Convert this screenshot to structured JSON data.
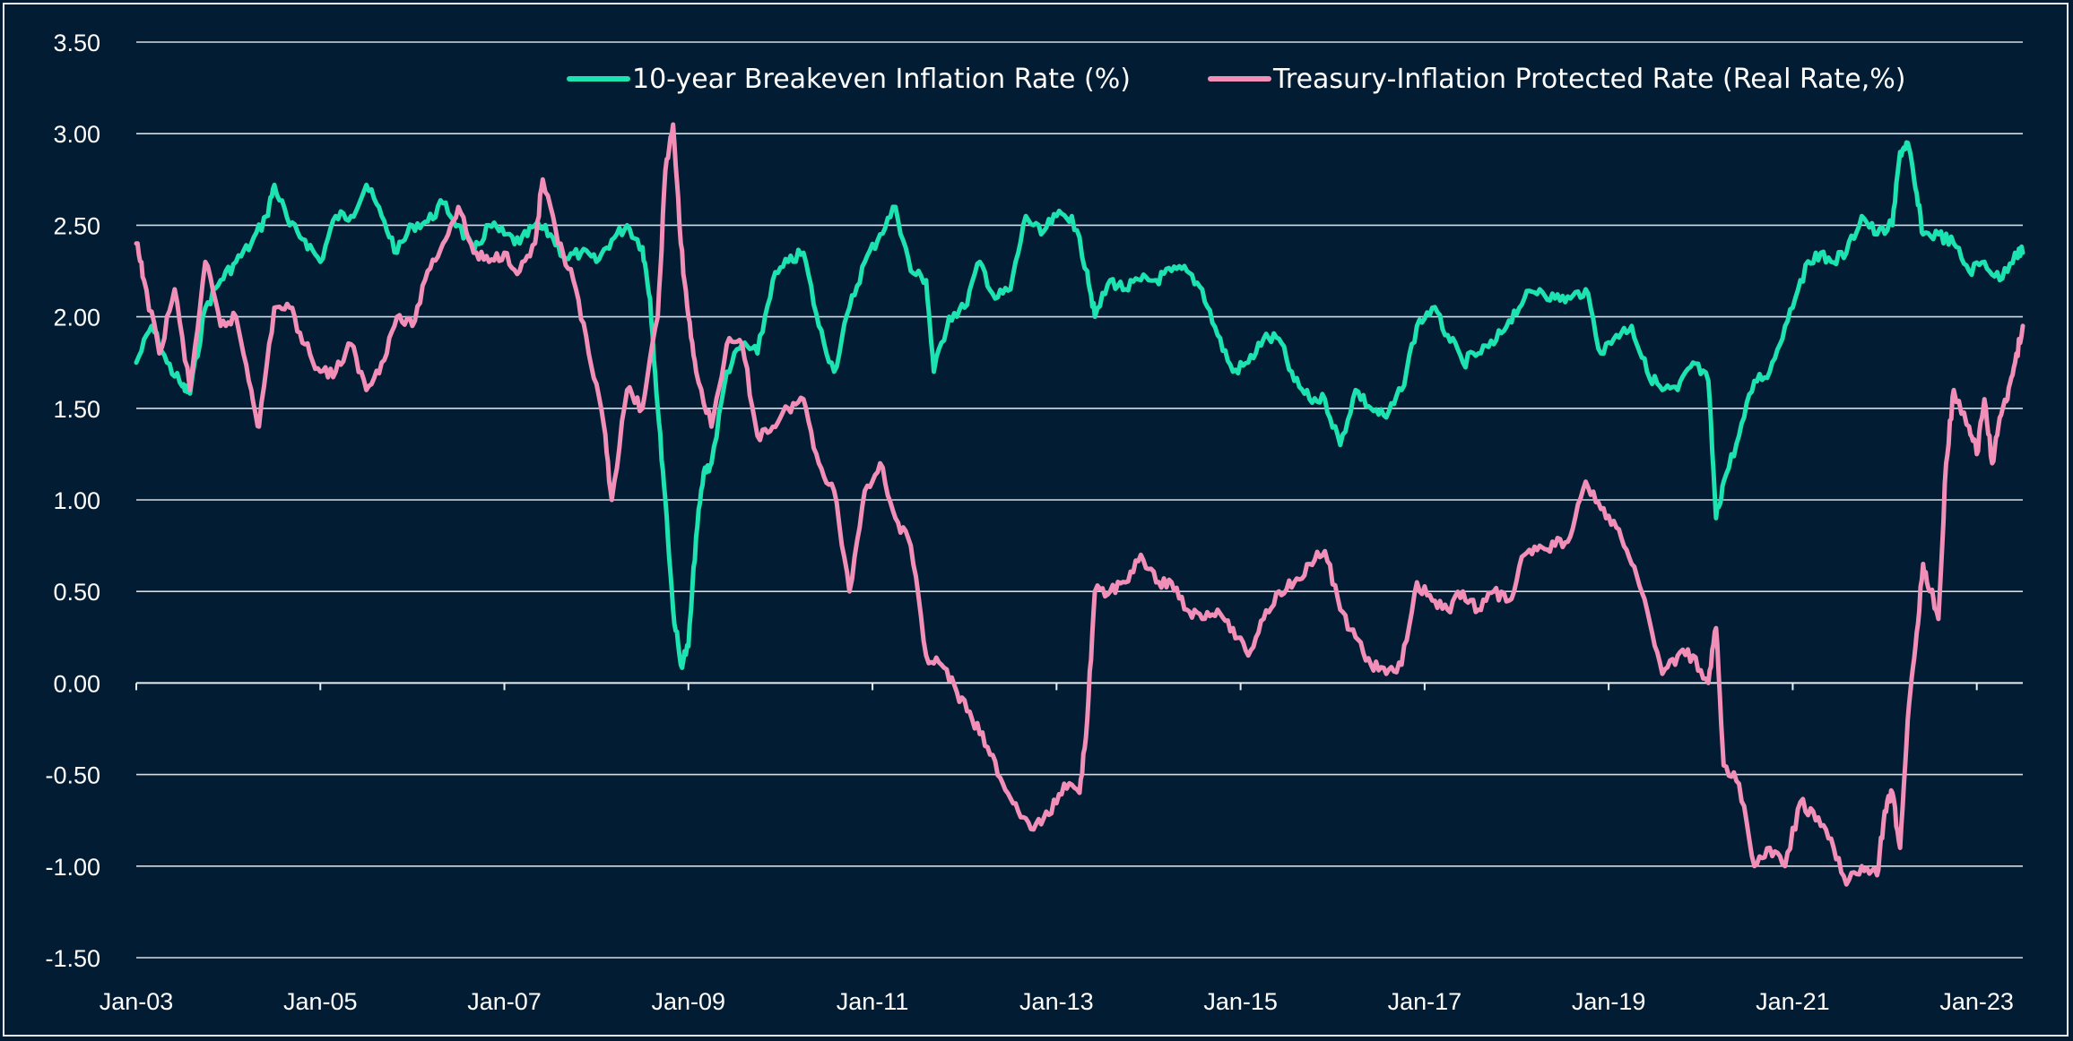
{
  "chart_data": {
    "type": "line",
    "title": "",
    "xlabel": "",
    "ylabel": "",
    "ylim": [
      -1.5,
      3.5
    ],
    "xlim": [
      "2003-01",
      "2023-07"
    ],
    "grid": "horizontal",
    "legend_position": "top",
    "y_ticks": [
      "3.50",
      "3.00",
      "2.50",
      "2.00",
      "1.50",
      "1.00",
      "0.50",
      "0.00",
      "-0.50",
      "-1.00",
      "-1.50"
    ],
    "x_ticks": [
      "Jan-03",
      "Jan-05",
      "Jan-07",
      "Jan-09",
      "Jan-11",
      "Jan-13",
      "Jan-15",
      "Jan-17",
      "Jan-19",
      "Jan-21",
      "Jan-23"
    ],
    "series": [
      {
        "name": "10-year Breakeven Inflation Rate (%)",
        "color": "#1de3b0",
        "points": [
          [
            "2003-01",
            1.75
          ],
          [
            "2003-03",
            1.95
          ],
          [
            "2003-05",
            1.75
          ],
          [
            "2003-07",
            1.62
          ],
          [
            "2003-08",
            1.58
          ],
          [
            "2003-10",
            2.05
          ],
          [
            "2003-12",
            2.2
          ],
          [
            "2004-02",
            2.3
          ],
          [
            "2004-04",
            2.4
          ],
          [
            "2004-06",
            2.55
          ],
          [
            "2004-07",
            2.72
          ],
          [
            "2004-09",
            2.5
          ],
          [
            "2004-11",
            2.42
          ],
          [
            "2005-01",
            2.3
          ],
          [
            "2005-03",
            2.55
          ],
          [
            "2005-05",
            2.55
          ],
          [
            "2005-07",
            2.72
          ],
          [
            "2005-09",
            2.55
          ],
          [
            "2005-11",
            2.35
          ],
          [
            "2006-01",
            2.5
          ],
          [
            "2006-03",
            2.52
          ],
          [
            "2006-05",
            2.62
          ],
          [
            "2006-07",
            2.5
          ],
          [
            "2006-09",
            2.35
          ],
          [
            "2006-11",
            2.5
          ],
          [
            "2007-01",
            2.45
          ],
          [
            "2007-03",
            2.4
          ],
          [
            "2007-05",
            2.5
          ],
          [
            "2007-07",
            2.45
          ],
          [
            "2007-09",
            2.32
          ],
          [
            "2007-11",
            2.35
          ],
          [
            "2008-01",
            2.3
          ],
          [
            "2008-03",
            2.42
          ],
          [
            "2008-05",
            2.5
          ],
          [
            "2008-07",
            2.38
          ],
          [
            "2008-08",
            2.1
          ],
          [
            "2008-09",
            1.5
          ],
          [
            "2008-10",
            1.0
          ],
          [
            "2008-11",
            0.4
          ],
          [
            "2008-12",
            0.1
          ],
          [
            "2009-01",
            0.2
          ],
          [
            "2009-02",
            0.8
          ],
          [
            "2009-03",
            1.15
          ],
          [
            "2009-04",
            1.2
          ],
          [
            "2009-06",
            1.7
          ],
          [
            "2009-08",
            1.85
          ],
          [
            "2009-10",
            1.8
          ],
          [
            "2009-12",
            2.2
          ],
          [
            "2010-02",
            2.3
          ],
          [
            "2010-04",
            2.35
          ],
          [
            "2010-06",
            1.95
          ],
          [
            "2010-08",
            1.7
          ],
          [
            "2010-10",
            2.05
          ],
          [
            "2010-12",
            2.3
          ],
          [
            "2011-02",
            2.45
          ],
          [
            "2011-04",
            2.6
          ],
          [
            "2011-06",
            2.25
          ],
          [
            "2011-08",
            2.2
          ],
          [
            "2011-09",
            1.7
          ],
          [
            "2011-11",
            2.0
          ],
          [
            "2012-01",
            2.05
          ],
          [
            "2012-03",
            2.3
          ],
          [
            "2012-05",
            2.1
          ],
          [
            "2012-07",
            2.15
          ],
          [
            "2012-09",
            2.55
          ],
          [
            "2012-11",
            2.45
          ],
          [
            "2013-01",
            2.55
          ],
          [
            "2013-03",
            2.55
          ],
          [
            "2013-05",
            2.25
          ],
          [
            "2013-06",
            2.0
          ],
          [
            "2013-08",
            2.2
          ],
          [
            "2013-10",
            2.15
          ],
          [
            "2013-12",
            2.2
          ],
          [
            "2014-02",
            2.2
          ],
          [
            "2014-04",
            2.25
          ],
          [
            "2014-06",
            2.25
          ],
          [
            "2014-08",
            2.15
          ],
          [
            "2014-10",
            1.9
          ],
          [
            "2014-12",
            1.7
          ],
          [
            "2015-02",
            1.75
          ],
          [
            "2015-04",
            1.88
          ],
          [
            "2015-06",
            1.88
          ],
          [
            "2015-08",
            1.65
          ],
          [
            "2015-10",
            1.55
          ],
          [
            "2015-12",
            1.55
          ],
          [
            "2016-02",
            1.3
          ],
          [
            "2016-04",
            1.6
          ],
          [
            "2016-06",
            1.5
          ],
          [
            "2016-08",
            1.45
          ],
          [
            "2016-10",
            1.6
          ],
          [
            "2016-12",
            1.95
          ],
          [
            "2017-02",
            2.05
          ],
          [
            "2017-04",
            1.9
          ],
          [
            "2017-06",
            1.75
          ],
          [
            "2017-08",
            1.8
          ],
          [
            "2017-10",
            1.85
          ],
          [
            "2017-12",
            1.98
          ],
          [
            "2018-02",
            2.1
          ],
          [
            "2018-04",
            2.15
          ],
          [
            "2018-06",
            2.1
          ],
          [
            "2018-08",
            2.1
          ],
          [
            "2018-10",
            2.15
          ],
          [
            "2018-12",
            1.8
          ],
          [
            "2019-02",
            1.9
          ],
          [
            "2019-04",
            1.95
          ],
          [
            "2019-06",
            1.7
          ],
          [
            "2019-08",
            1.6
          ],
          [
            "2019-10",
            1.6
          ],
          [
            "2019-12",
            1.75
          ],
          [
            "2020-02",
            1.65
          ],
          [
            "2020-03",
            0.9
          ],
          [
            "2020-04",
            1.1
          ],
          [
            "2020-06",
            1.35
          ],
          [
            "2020-08",
            1.65
          ],
          [
            "2020-10",
            1.7
          ],
          [
            "2020-12",
            1.95
          ],
          [
            "2021-02",
            2.2
          ],
          [
            "2021-04",
            2.35
          ],
          [
            "2021-06",
            2.3
          ],
          [
            "2021-08",
            2.35
          ],
          [
            "2021-10",
            2.55
          ],
          [
            "2021-12",
            2.45
          ],
          [
            "2022-02",
            2.5
          ],
          [
            "2022-03",
            2.9
          ],
          [
            "2022-04",
            2.95
          ],
          [
            "2022-05",
            2.7
          ],
          [
            "2022-06",
            2.45
          ],
          [
            "2022-08",
            2.45
          ],
          [
            "2022-10",
            2.4
          ],
          [
            "2022-12",
            2.25
          ],
          [
            "2023-02",
            2.3
          ],
          [
            "2023-04",
            2.2
          ],
          [
            "2023-06",
            2.35
          ],
          [
            "2023-07",
            2.35
          ]
        ]
      },
      {
        "name": "Treasury-Inflation Protected Rate (Real Rate,%)",
        "color": "#f28fb8",
        "points": [
          [
            "2003-01",
            2.4
          ],
          [
            "2003-02",
            2.2
          ],
          [
            "2003-04",
            1.8
          ],
          [
            "2003-06",
            2.15
          ],
          [
            "2003-08",
            1.6
          ],
          [
            "2003-10",
            2.3
          ],
          [
            "2003-12",
            1.95
          ],
          [
            "2004-02",
            2.0
          ],
          [
            "2004-04",
            1.6
          ],
          [
            "2004-05",
            1.4
          ],
          [
            "2004-07",
            2.05
          ],
          [
            "2004-09",
            2.05
          ],
          [
            "2004-11",
            1.85
          ],
          [
            "2005-01",
            1.7
          ],
          [
            "2005-03",
            1.7
          ],
          [
            "2005-05",
            1.85
          ],
          [
            "2005-07",
            1.6
          ],
          [
            "2005-09",
            1.75
          ],
          [
            "2005-11",
            2.0
          ],
          [
            "2006-01",
            1.95
          ],
          [
            "2006-03",
            2.25
          ],
          [
            "2006-05",
            2.4
          ],
          [
            "2006-07",
            2.6
          ],
          [
            "2006-09",
            2.35
          ],
          [
            "2006-11",
            2.3
          ],
          [
            "2007-01",
            2.35
          ],
          [
            "2007-03",
            2.25
          ],
          [
            "2007-05",
            2.4
          ],
          [
            "2007-06",
            2.75
          ],
          [
            "2007-08",
            2.4
          ],
          [
            "2007-10",
            2.2
          ],
          [
            "2007-12",
            1.8
          ],
          [
            "2008-02",
            1.4
          ],
          [
            "2008-03",
            1.0
          ],
          [
            "2008-05",
            1.6
          ],
          [
            "2008-07",
            1.5
          ],
          [
            "2008-09",
            2.0
          ],
          [
            "2008-10",
            2.8
          ],
          [
            "2008-11",
            3.05
          ],
          [
            "2008-12",
            2.4
          ],
          [
            "2009-01",
            2.0
          ],
          [
            "2009-02",
            1.7
          ],
          [
            "2009-04",
            1.4
          ],
          [
            "2009-06",
            1.85
          ],
          [
            "2009-08",
            1.85
          ],
          [
            "2009-10",
            1.35
          ],
          [
            "2009-12",
            1.4
          ],
          [
            "2010-02",
            1.5
          ],
          [
            "2010-04",
            1.55
          ],
          [
            "2010-06",
            1.2
          ],
          [
            "2010-08",
            1.05
          ],
          [
            "2010-10",
            0.5
          ],
          [
            "2010-12",
            1.05
          ],
          [
            "2011-02",
            1.2
          ],
          [
            "2011-04",
            0.9
          ],
          [
            "2011-06",
            0.75
          ],
          [
            "2011-08",
            0.15
          ],
          [
            "2011-10",
            0.1
          ],
          [
            "2011-12",
            -0.05
          ],
          [
            "2012-02",
            -0.2
          ],
          [
            "2012-04",
            -0.35
          ],
          [
            "2012-06",
            -0.55
          ],
          [
            "2012-08",
            -0.7
          ],
          [
            "2012-10",
            -0.8
          ],
          [
            "2012-12",
            -0.72
          ],
          [
            "2013-02",
            -0.55
          ],
          [
            "2013-04",
            -0.6
          ],
          [
            "2013-05",
            -0.2
          ],
          [
            "2013-06",
            0.5
          ],
          [
            "2013-08",
            0.5
          ],
          [
            "2013-10",
            0.55
          ],
          [
            "2013-12",
            0.7
          ],
          [
            "2014-02",
            0.55
          ],
          [
            "2014-04",
            0.55
          ],
          [
            "2014-06",
            0.4
          ],
          [
            "2014-08",
            0.35
          ],
          [
            "2014-10",
            0.4
          ],
          [
            "2014-12",
            0.3
          ],
          [
            "2015-02",
            0.15
          ],
          [
            "2015-04",
            0.35
          ],
          [
            "2015-06",
            0.5
          ],
          [
            "2015-08",
            0.55
          ],
          [
            "2015-10",
            0.65
          ],
          [
            "2015-12",
            0.72
          ],
          [
            "2016-02",
            0.4
          ],
          [
            "2016-04",
            0.25
          ],
          [
            "2016-06",
            0.1
          ],
          [
            "2016-08",
            0.05
          ],
          [
            "2016-10",
            0.1
          ],
          [
            "2016-12",
            0.55
          ],
          [
            "2017-02",
            0.45
          ],
          [
            "2017-04",
            0.4
          ],
          [
            "2017-06",
            0.5
          ],
          [
            "2017-08",
            0.4
          ],
          [
            "2017-10",
            0.5
          ],
          [
            "2017-12",
            0.45
          ],
          [
            "2018-02",
            0.7
          ],
          [
            "2018-04",
            0.75
          ],
          [
            "2018-06",
            0.75
          ],
          [
            "2018-08",
            0.8
          ],
          [
            "2018-10",
            1.1
          ],
          [
            "2018-12",
            0.95
          ],
          [
            "2019-02",
            0.85
          ],
          [
            "2019-04",
            0.65
          ],
          [
            "2019-06",
            0.4
          ],
          [
            "2019-08",
            0.05
          ],
          [
            "2019-10",
            0.15
          ],
          [
            "2019-12",
            0.15
          ],
          [
            "2020-02",
            0.0
          ],
          [
            "2020-03",
            0.3
          ],
          [
            "2020-04",
            -0.45
          ],
          [
            "2020-06",
            -0.55
          ],
          [
            "2020-08",
            -1.0
          ],
          [
            "2020-10",
            -0.9
          ],
          [
            "2020-12",
            -1.0
          ],
          [
            "2021-02",
            -0.65
          ],
          [
            "2021-04",
            -0.75
          ],
          [
            "2021-06",
            -0.85
          ],
          [
            "2021-08",
            -1.1
          ],
          [
            "2021-10",
            -1.0
          ],
          [
            "2021-12",
            -1.05
          ],
          [
            "2022-01",
            -0.7
          ],
          [
            "2022-02",
            -0.6
          ],
          [
            "2022-03",
            -0.9
          ],
          [
            "2022-04",
            -0.2
          ],
          [
            "2022-05",
            0.2
          ],
          [
            "2022-06",
            0.65
          ],
          [
            "2022-07",
            0.5
          ],
          [
            "2022-08",
            0.35
          ],
          [
            "2022-09",
            1.2
          ],
          [
            "2022-10",
            1.6
          ],
          [
            "2022-12",
            1.4
          ],
          [
            "2023-01",
            1.25
          ],
          [
            "2023-02",
            1.55
          ],
          [
            "2023-03",
            1.2
          ],
          [
            "2023-04",
            1.45
          ],
          [
            "2023-05",
            1.55
          ],
          [
            "2023-06",
            1.75
          ],
          [
            "2023-07",
            1.95
          ]
        ]
      }
    ]
  }
}
